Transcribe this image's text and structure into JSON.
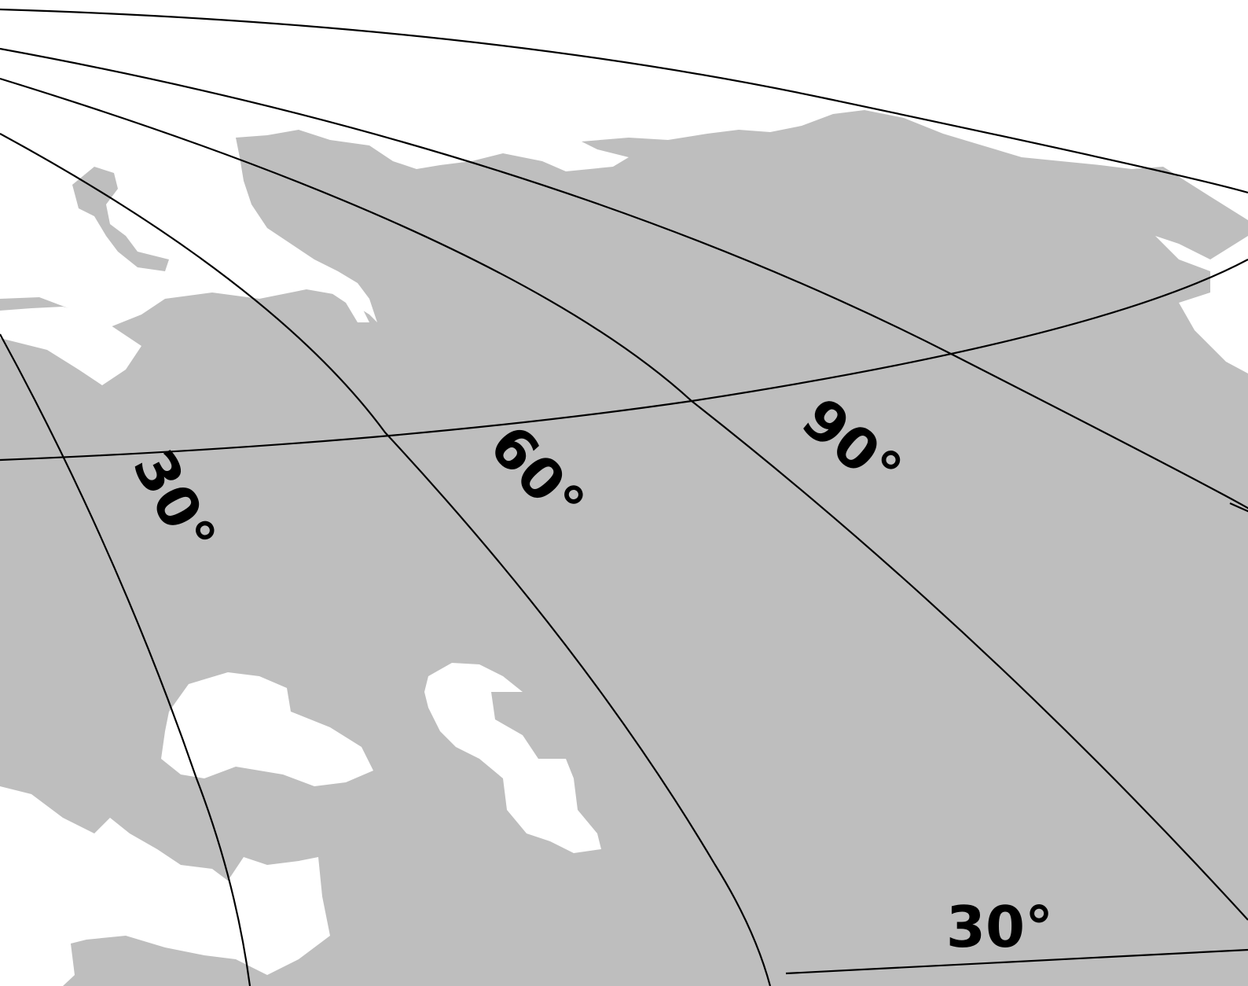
{
  "labels": {
    "meridians": [
      "30°",
      "60°",
      "90°"
    ],
    "parallels": [
      "30°"
    ]
  }
}
